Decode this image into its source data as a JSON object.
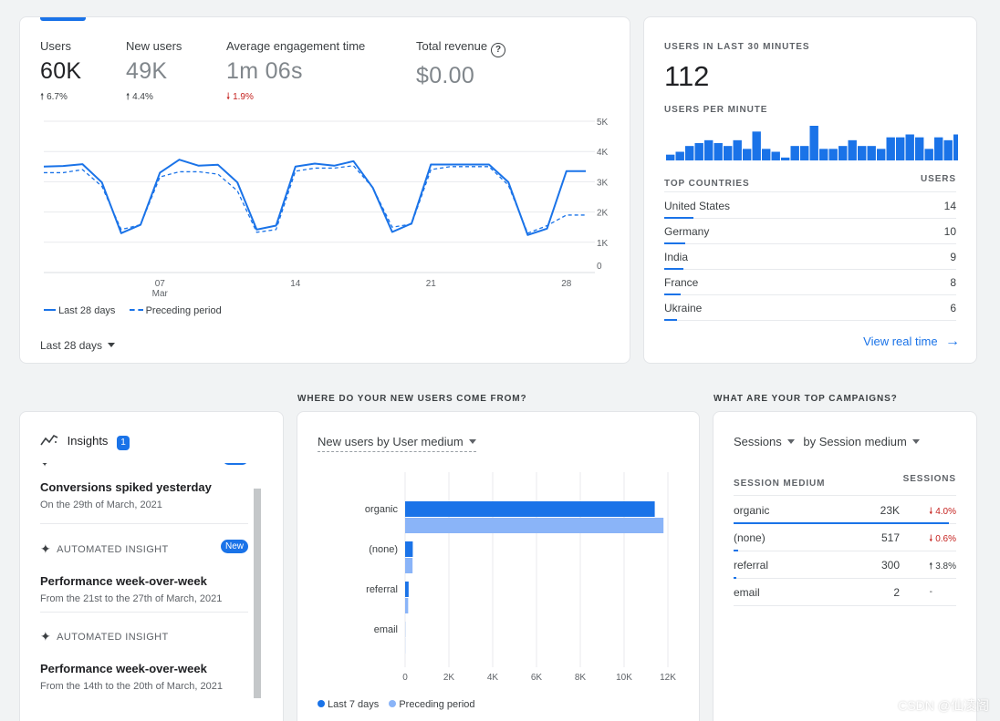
{
  "overview": {
    "metrics": [
      {
        "label": "Users",
        "value": "60K",
        "delta": "6.7%",
        "direction": "up"
      },
      {
        "label": "New users",
        "value": "49K",
        "delta": "4.4%",
        "direction": "up"
      },
      {
        "label": "Average engagement time",
        "value": "1m 06s",
        "delta": "1.9%",
        "direction": "down"
      },
      {
        "label": "Total revenue",
        "value": "$0.00",
        "delta": "",
        "direction": ""
      }
    ],
    "legend": {
      "current": "Last 28 days",
      "previous": "Preceding period"
    },
    "range_selector": "Last 28 days"
  },
  "chart_data": [
    {
      "type": "line",
      "x_labels": [
        {
          "day": 7,
          "label": "07",
          "sub": "Mar"
        },
        {
          "day": 14,
          "label": "14",
          "sub": ""
        },
        {
          "day": 21,
          "label": "21",
          "sub": ""
        },
        {
          "day": 28,
          "label": "28",
          "sub": ""
        }
      ],
      "x": [
        1,
        2,
        3,
        4,
        5,
        6,
        7,
        8,
        9,
        10,
        11,
        12,
        13,
        14,
        15,
        16,
        17,
        18,
        19,
        20,
        21,
        22,
        23,
        24,
        25,
        26,
        27,
        28,
        29
      ],
      "ylim": [
        0,
        5000
      ],
      "y_ticks": [
        "0",
        "1K",
        "2K",
        "3K",
        "4K",
        "5K"
      ],
      "grid": true,
      "series": [
        {
          "name": "Last 28 days",
          "values": [
            3500,
            3520,
            3580,
            2980,
            1300,
            1580,
            3300,
            3730,
            3530,
            3560,
            2980,
            1420,
            1550,
            3500,
            3600,
            3530,
            3680,
            2800,
            1340,
            1620,
            3570,
            3570,
            3570,
            3570,
            2990,
            1240,
            1450,
            3350,
            3350
          ]
        },
        {
          "name": "Preceding period",
          "values": [
            3300,
            3300,
            3400,
            2850,
            1420,
            1580,
            3160,
            3330,
            3330,
            3250,
            2700,
            1330,
            1420,
            3350,
            3450,
            3450,
            3530,
            2800,
            1500,
            1600,
            3400,
            3500,
            3500,
            3500,
            2890,
            1300,
            1550,
            1900,
            1900
          ]
        }
      ]
    },
    {
      "type": "bar",
      "categories": [
        "organic",
        "(none)",
        "referral",
        "email"
      ],
      "xlim": [
        0,
        12000
      ],
      "x_ticks": [
        "0",
        "2K",
        "4K",
        "6K",
        "8K",
        "10K",
        "12K"
      ],
      "series": [
        {
          "name": "Last 7 days",
          "values": [
            11400,
            350,
            160,
            5
          ]
        },
        {
          "name": "Preceding period",
          "values": [
            11800,
            340,
            140,
            5
          ]
        }
      ]
    },
    {
      "type": "bar",
      "values": [
        2,
        3,
        5,
        6,
        7,
        6,
        5,
        7,
        4,
        10,
        4,
        3,
        1,
        5,
        5,
        12,
        4,
        4,
        5,
        7,
        5,
        5,
        4,
        8,
        8,
        9,
        8,
        4,
        8,
        7,
        9,
        4,
        5,
        7
      ]
    }
  ],
  "realtime": {
    "title": "USERS IN LAST 30 MINUTES",
    "count": "112",
    "per_minute_label": "USERS PER MINUTE",
    "countries_header": "TOP COUNTRIES",
    "users_header": "USERS",
    "countries": [
      {
        "name": "United States",
        "users": "14",
        "share": 0.14
      },
      {
        "name": "Germany",
        "users": "10",
        "share": 0.1
      },
      {
        "name": "India",
        "users": "9",
        "share": 0.09
      },
      {
        "name": "France",
        "users": "8",
        "share": 0.08
      },
      {
        "name": "Ukraine",
        "users": "6",
        "share": 0.06
      }
    ],
    "link": "View real time"
  },
  "sections": {
    "new_users": "WHERE DO YOUR NEW USERS COME FROM?",
    "campaigns": "WHAT ARE YOUR TOP CAMPAIGNS?"
  },
  "insights": {
    "title": "Insights",
    "count": "1",
    "items": [
      {
        "title": "Conversions spiked yesterday",
        "sub": "On the 29th of March, 2021",
        "tag": "",
        "new": ""
      },
      {
        "title": "Performance week-over-week",
        "sub": "From the 21st to the 27th of March, 2021",
        "tag": "AUTOMATED INSIGHT",
        "new": "New"
      },
      {
        "title": "Performance week-over-week",
        "sub": "From the 14th to the 20th of March, 2021",
        "tag": "AUTOMATED INSIGHT",
        "new": ""
      }
    ]
  },
  "new_users_card": {
    "dropdown": "New users by User medium",
    "legend_current": "Last 7 days",
    "legend_previous": "Preceding period"
  },
  "campaigns_card": {
    "dropdown_metric": "Sessions",
    "dropdown_dim": "by Session medium",
    "col_dim": "SESSION MEDIUM",
    "col_metric": "SESSIONS",
    "rows": [
      {
        "name": "organic",
        "value": "23K",
        "change": "4.0%",
        "direction": "down",
        "share": 1.0
      },
      {
        "name": "(none)",
        "value": "517",
        "change": "0.6%",
        "direction": "down",
        "share": 0.02
      },
      {
        "name": "referral",
        "value": "300",
        "change": "3.8%",
        "direction": "up",
        "share": 0.013
      },
      {
        "name": "email",
        "value": "2",
        "change": "-",
        "direction": "",
        "share": 0
      }
    ]
  },
  "watermark": "CSDN @仙凌阁",
  "colors": {
    "primary": "#1a73e8",
    "light": "#8ab4f8",
    "negative": "#c5221f"
  }
}
